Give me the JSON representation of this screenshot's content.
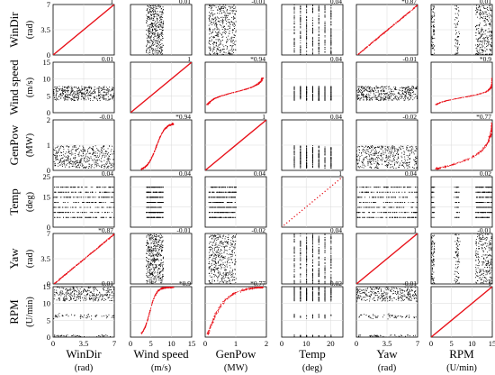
{
  "chart_data": {
    "type": "scatter",
    "layout": "scatter-matrix",
    "title": "",
    "variables": [
      {
        "name": "WinDir",
        "unit": "(rad)",
        "range": [
          0,
          7
        ],
        "ticks": [
          "0",
          "3.5",
          "7"
        ],
        "tick_values": [
          0,
          3.5,
          7
        ],
        "pattern": "uniform"
      },
      {
        "name": "Wind speed",
        "unit": "(m/s)",
        "range": [
          0,
          15
        ],
        "ticks": [
          "0",
          "5",
          "10",
          "15"
        ],
        "tick_values": [
          0,
          5,
          10,
          15
        ],
        "pattern": "band"
      },
      {
        "name": "GenPow",
        "unit": "(MW)",
        "range": [
          0,
          2
        ],
        "ticks": [
          "0",
          "1",
          "2"
        ],
        "tick_values": [
          0,
          1,
          2
        ],
        "pattern": "band-high"
      },
      {
        "name": "Temp",
        "unit": "(deg)",
        "range": [
          0,
          25
        ],
        "ticks": [
          "0",
          "10",
          "20"
        ],
        "tick_values": [
          0,
          10,
          20
        ],
        "y_ticks": [
          "0",
          "15",
          "25"
        ],
        "y_tick_values": [
          0,
          15,
          25
        ],
        "pattern": "discrete"
      },
      {
        "name": "Yaw",
        "unit": "(rad)",
        "range": [
          0,
          7
        ],
        "ticks": [
          "0",
          "3.5",
          "7"
        ],
        "tick_values": [
          0,
          3.5,
          7
        ],
        "pattern": "uniform"
      },
      {
        "name": "RPM",
        "unit": "(U/min)",
        "range": [
          0,
          15
        ],
        "ticks": [
          "0",
          "5",
          "10",
          "15"
        ],
        "tick_values": [
          0,
          5,
          10,
          15
        ],
        "pattern": "levels"
      }
    ],
    "correlations": [
      [
        "1",
        "0.01",
        "-0.01",
        "0.04",
        "*0.87",
        "0.01"
      ],
      [
        "0.01",
        "1",
        "*0.94",
        "0.04",
        "-0.01",
        "*0.9"
      ],
      [
        "-0.01",
        "*0.94",
        "1",
        "0.04",
        "-0.02",
        "*0.77"
      ],
      [
        "0.04",
        "0.04",
        "0.04",
        "1",
        "0.04",
        "0.02"
      ],
      [
        "*0.87",
        "-0.01",
        "-0.02",
        "0.04",
        "1",
        "-0.01"
      ],
      [
        "0.01",
        "*0.9",
        "*0.77",
        "0.02",
        "-0.01",
        "1"
      ]
    ],
    "correlation_values": [
      [
        1,
        0.01,
        -0.01,
        0.04,
        0.87,
        0.01
      ],
      [
        0.01,
        1,
        0.94,
        0.04,
        -0.01,
        0.9
      ],
      [
        -0.01,
        0.94,
        1,
        0.04,
        -0.02,
        0.77
      ],
      [
        0.04,
        0.04,
        0.04,
        1,
        0.04,
        0.02
      ],
      [
        0.87,
        -0.01,
        -0.02,
        0.04,
        1,
        -0.01
      ],
      [
        0.01,
        0.9,
        0.77,
        0.02,
        -0.01,
        1
      ]
    ],
    "significant_color": "#e8121a",
    "point_color": "#000000",
    "grid": true
  }
}
